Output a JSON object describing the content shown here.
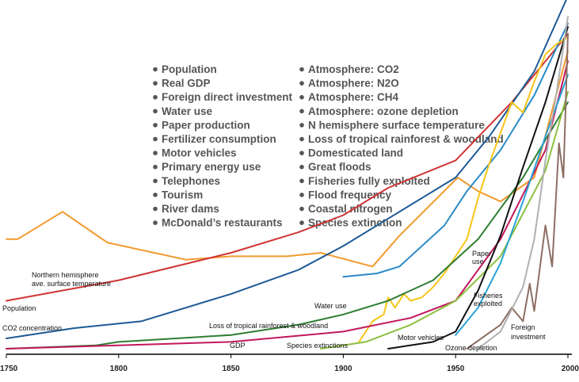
{
  "chart_data": {
    "type": "line",
    "title": "",
    "xlabel": "",
    "ylabel": "",
    "xlim": [
      1750,
      2000
    ],
    "x_ticks": [
      "1750",
      "1800",
      "1850",
      "1900",
      "1950",
      "2000"
    ],
    "grid": false,
    "legend_items_left": [
      "Population",
      "Real GDP",
      "Foreign direct investment",
      "Water use",
      "Paper production",
      "Fertilizer consumption",
      "Motor vehicles",
      "Primary energy use",
      "Telephones",
      "Tourism",
      "River dams",
      "McDonald’s restaurants"
    ],
    "legend_items_right": [
      "Atmosphere: CO2",
      "Atmosphere: N2O",
      "Atmosphere: CH4",
      "Atmosphere: ozone depletion",
      "N hemisphere surface temperature",
      "Loss of tropical rainforest & woodland",
      "Domesticated land",
      "Great floods",
      "Fisheries fully exploited",
      "Flood frequency",
      "Coastal nitrogen",
      "Species extinction"
    ],
    "series": [
      {
        "name": "Northern hemisphere ave. surface temperature",
        "color": "#f39a2e",
        "points": [
          [
            1750,
            0.32
          ],
          [
            1755,
            0.32
          ],
          [
            1775,
            0.4
          ],
          [
            1795,
            0.31
          ],
          [
            1830,
            0.26
          ],
          [
            1850,
            0.27
          ],
          [
            1875,
            0.27
          ],
          [
            1890,
            0.28
          ],
          [
            1913,
            0.24
          ],
          [
            1925,
            0.33
          ],
          [
            1951,
            0.5
          ],
          [
            1960,
            0.46
          ],
          [
            1970,
            0.43
          ],
          [
            1985,
            0.5
          ],
          [
            2000,
            0.87
          ]
        ]
      },
      {
        "name": "Population",
        "color": "#d03434",
        "points": [
          [
            1750,
            0.14
          ],
          [
            1800,
            0.2
          ],
          [
            1850,
            0.28
          ],
          [
            1880,
            0.34
          ],
          [
            1900,
            0.39
          ],
          [
            1920,
            0.47
          ],
          [
            1950,
            0.55
          ],
          [
            1975,
            0.72
          ],
          [
            2000,
            0.92
          ]
        ]
      },
      {
        "name": "CO2 concentration",
        "color": "#1e5a96",
        "points": [
          [
            1750,
            0.03
          ],
          [
            1780,
            0.06
          ],
          [
            1810,
            0.08
          ],
          [
            1850,
            0.16
          ],
          [
            1880,
            0.23
          ],
          [
            1900,
            0.3
          ],
          [
            1920,
            0.38
          ],
          [
            1950,
            0.5
          ],
          [
            1965,
            0.62
          ],
          [
            1985,
            0.81
          ],
          [
            2000,
            1.03
          ]
        ]
      },
      {
        "name": "Water use",
        "color": "#2a8ac8",
        "points": [
          [
            1900,
            0.21
          ],
          [
            1915,
            0.22
          ],
          [
            1925,
            0.24
          ],
          [
            1945,
            0.36
          ],
          [
            1955,
            0.46
          ],
          [
            1970,
            0.58
          ],
          [
            1985,
            0.74
          ],
          [
            2000,
            0.95
          ]
        ]
      },
      {
        "name": "Paper use",
        "color": "#f5c518",
        "points": [
          [
            1907,
            0.02
          ],
          [
            1913,
            0.08
          ],
          [
            1918,
            0.1
          ],
          [
            1920,
            0.15
          ],
          [
            1923,
            0.12
          ],
          [
            1927,
            0.16
          ],
          [
            1930,
            0.14
          ],
          [
            1935,
            0.15
          ],
          [
            1940,
            0.18
          ],
          [
            1945,
            0.22
          ],
          [
            1950,
            0.27
          ],
          [
            1955,
            0.32
          ],
          [
            1960,
            0.44
          ],
          [
            1965,
            0.54
          ],
          [
            1970,
            0.63
          ],
          [
            1975,
            0.72
          ],
          [
            1980,
            0.69
          ],
          [
            1985,
            0.78
          ],
          [
            1990,
            0.86
          ],
          [
            1995,
            0.89
          ],
          [
            2000,
            0.91
          ]
        ]
      },
      {
        "name": "Loss of tropical rainforest & woodland",
        "color": "#2e7d32",
        "points": [
          [
            1750,
            0.0
          ],
          [
            1790,
            0.01
          ],
          [
            1800,
            0.02
          ],
          [
            1850,
            0.04
          ],
          [
            1880,
            0.07
          ],
          [
            1900,
            0.1
          ],
          [
            1920,
            0.14
          ],
          [
            1940,
            0.2
          ],
          [
            1960,
            0.32
          ],
          [
            1980,
            0.5
          ],
          [
            2000,
            0.72
          ]
        ]
      },
      {
        "name": "GDP",
        "color": "#c2185b",
        "points": [
          [
            1750,
            0.0
          ],
          [
            1800,
            0.01
          ],
          [
            1850,
            0.02
          ],
          [
            1900,
            0.05
          ],
          [
            1930,
            0.09
          ],
          [
            1950,
            0.14
          ],
          [
            1970,
            0.32
          ],
          [
            1990,
            0.58
          ],
          [
            2000,
            0.84
          ]
        ]
      },
      {
        "name": "Species extinctions",
        "color": "#8cbf3f",
        "points": [
          [
            1890,
            0.0
          ],
          [
            1910,
            0.02
          ],
          [
            1930,
            0.07
          ],
          [
            1950,
            0.14
          ],
          [
            1970,
            0.27
          ],
          [
            1990,
            0.52
          ],
          [
            2000,
            0.75
          ]
        ]
      },
      {
        "name": "Motor vehicles",
        "color": "#111111",
        "points": [
          [
            1920,
            0.0
          ],
          [
            1940,
            0.02
          ],
          [
            1950,
            0.05
          ],
          [
            1960,
            0.17
          ],
          [
            1970,
            0.33
          ],
          [
            1980,
            0.53
          ],
          [
            1990,
            0.72
          ],
          [
            2000,
            0.94
          ]
        ]
      },
      {
        "name": "Fisheries exploited",
        "color": "#29a3d6",
        "points": [
          [
            1950,
            0.04
          ],
          [
            1960,
            0.12
          ],
          [
            1970,
            0.25
          ],
          [
            1980,
            0.43
          ],
          [
            1990,
            0.62
          ],
          [
            2000,
            0.8
          ]
        ]
      },
      {
        "name": "Foreign investment",
        "color": "#8d6e63",
        "points": [
          [
            1955,
            0.0
          ],
          [
            1970,
            0.07
          ],
          [
            1975,
            0.12
          ],
          [
            1980,
            0.08
          ],
          [
            1983,
            0.19
          ],
          [
            1985,
            0.11
          ],
          [
            1990,
            0.36
          ],
          [
            1993,
            0.24
          ],
          [
            1996,
            0.6
          ],
          [
            1998,
            0.5
          ],
          [
            2000,
            0.92
          ]
        ]
      },
      {
        "name": "Ozone depletion",
        "color": "#b0b0b0",
        "points": [
          [
            1960,
            0.0
          ],
          [
            1970,
            0.05
          ],
          [
            1980,
            0.18
          ],
          [
            1985,
            0.32
          ],
          [
            1990,
            0.55
          ],
          [
            1995,
            0.75
          ],
          [
            2000,
            0.97
          ]
        ]
      }
    ],
    "series_labels": [
      {
        "text": "Northern hemisphere",
        "series": "temp"
      },
      {
        "text": "ave. surface temperature",
        "series": "temp"
      },
      {
        "text": "Population",
        "series": "pop"
      },
      {
        "text": "CO2 concentration",
        "series": "co2"
      },
      {
        "text": "Water use",
        "series": "water"
      },
      {
        "text": "Paper",
        "series": "paper"
      },
      {
        "text": "use",
        "series": "paper"
      },
      {
        "text": "Loss of tropical rainforest & woodland",
        "series": "forest"
      },
      {
        "text": "GDP",
        "series": "gdp"
      },
      {
        "text": "Species extinctions",
        "series": "species"
      },
      {
        "text": "Motor vehicles",
        "series": "motor"
      },
      {
        "text": "Fisheries",
        "series": "fish"
      },
      {
        "text": "exploited",
        "series": "fish"
      },
      {
        "text": "Foreign",
        "series": "foreign"
      },
      {
        "text": "investment",
        "series": "foreign"
      },
      {
        "text": "Ozone depletion",
        "series": "ozone"
      }
    ]
  }
}
